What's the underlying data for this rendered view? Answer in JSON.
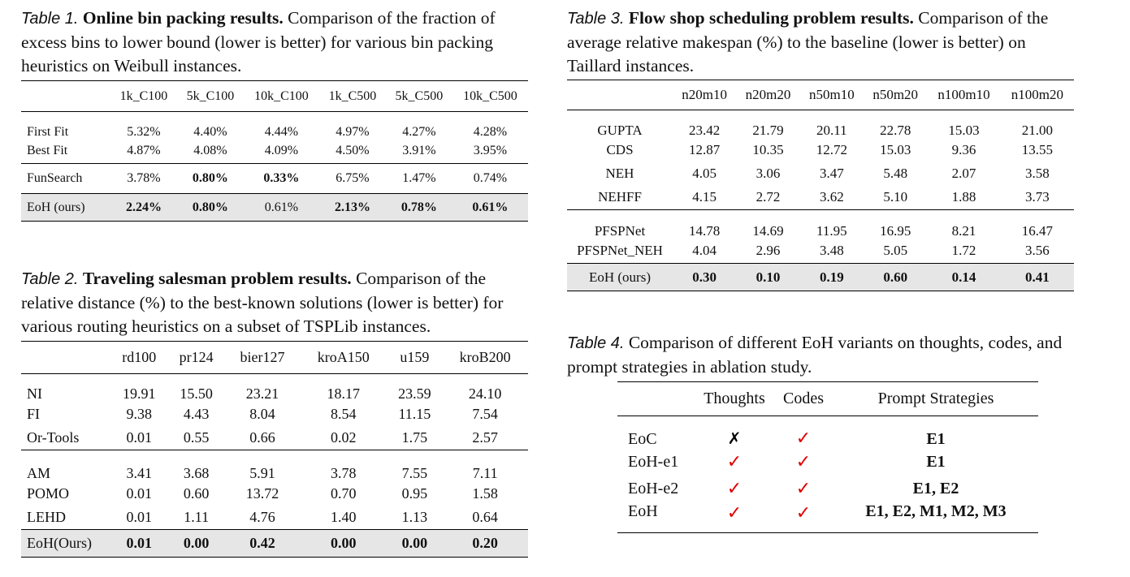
{
  "table1": {
    "label": "Table 1.",
    "title": "Online bin packing results.",
    "caption": "Comparison of the fraction of excess bins to lower bound (lower is better) for various bin packing heuristics on Weibull instances.",
    "columns": [
      "",
      "1k_C100",
      "5k_C100",
      "10k_C100",
      "1k_C500",
      "5k_C500",
      "10k_C500"
    ],
    "rows": [
      [
        "First Fit",
        "5.32%",
        "4.40%",
        "4.44%",
        "4.97%",
        "4.27%",
        "4.28%"
      ],
      [
        "Best Fit",
        "4.87%",
        "4.08%",
        "4.09%",
        "4.50%",
        "3.91%",
        "3.95%"
      ],
      [
        "FunSearch",
        "3.78%",
        "0.80%",
        "0.33%",
        "6.75%",
        "1.47%",
        "0.74%"
      ],
      [
        "EoH (ours)",
        "2.24%",
        "0.80%",
        "0.61%",
        "2.13%",
        "0.78%",
        "0.61%"
      ]
    ]
  },
  "table2": {
    "label": "Table 2.",
    "title": "Traveling salesman problem results.",
    "caption": "Comparison of the relative distance (%) to the best-known solutions (lower is better) for various routing heuristics on a subset of TSPLib instances.",
    "columns": [
      "",
      "rd100",
      "pr124",
      "bier127",
      "kroA150",
      "u159",
      "kroB200"
    ],
    "rows": [
      [
        "NI",
        "19.91",
        "15.50",
        "23.21",
        "18.17",
        "23.59",
        "24.10"
      ],
      [
        "FI",
        "9.38",
        "4.43",
        "8.04",
        "8.54",
        "11.15",
        "7.54"
      ],
      [
        "Or-Tools",
        "0.01",
        "0.55",
        "0.66",
        "0.02",
        "1.75",
        "2.57"
      ],
      [
        "AM",
        "3.41",
        "3.68",
        "5.91",
        "3.78",
        "7.55",
        "7.11"
      ],
      [
        "POMO",
        "0.01",
        "0.60",
        "13.72",
        "0.70",
        "0.95",
        "1.58"
      ],
      [
        "LEHD",
        "0.01",
        "1.11",
        "4.76",
        "1.40",
        "1.13",
        "0.64"
      ],
      [
        "EoH(Ours)",
        "0.01",
        "0.00",
        "0.42",
        "0.00",
        "0.00",
        "0.20"
      ]
    ]
  },
  "table3": {
    "label": "Table 3.",
    "title": "Flow shop scheduling problem results.",
    "caption": "Comparison of the average relative makespan (%) to the baseline (lower is better) on Taillard instances.",
    "columns": [
      "",
      "n20m10",
      "n20m20",
      "n50m10",
      "n50m20",
      "n100m10",
      "n100m20"
    ],
    "rows": [
      [
        "GUPTA",
        "23.42",
        "21.79",
        "20.11",
        "22.78",
        "15.03",
        "21.00"
      ],
      [
        "CDS",
        "12.87",
        "10.35",
        "12.72",
        "15.03",
        "9.36",
        "13.55"
      ],
      [
        "NEH",
        "4.05",
        "3.06",
        "3.47",
        "5.48",
        "2.07",
        "3.58"
      ],
      [
        "NEHFF",
        "4.15",
        "2.72",
        "3.62",
        "5.10",
        "1.88",
        "3.73"
      ],
      [
        "PFSPNet",
        "14.78",
        "14.69",
        "11.95",
        "16.95",
        "8.21",
        "16.47"
      ],
      [
        "PFSPNet_NEH",
        "4.04",
        "2.96",
        "3.48",
        "5.05",
        "1.72",
        "3.56"
      ],
      [
        "EoH (ours)",
        "0.30",
        "0.10",
        "0.19",
        "0.60",
        "0.14",
        "0.41"
      ]
    ]
  },
  "table4": {
    "label": "Table 4.",
    "caption": "Comparison of different EoH variants on thoughts, codes, and prompt strategies in ablation study.",
    "columns": [
      "",
      "Thoughts",
      "Codes",
      "Prompt Strategies"
    ],
    "check": "✓",
    "cross": "✗",
    "rows": [
      [
        "EoC",
        "✗",
        "✓",
        "E1"
      ],
      [
        "EoH-e1",
        "✓",
        "✓",
        "E1"
      ],
      [
        "EoH-e2",
        "✓",
        "✓",
        "E1, E2"
      ],
      [
        "EoH",
        "✓",
        "✓",
        "E1, E2, M1, M2, M3"
      ]
    ]
  }
}
